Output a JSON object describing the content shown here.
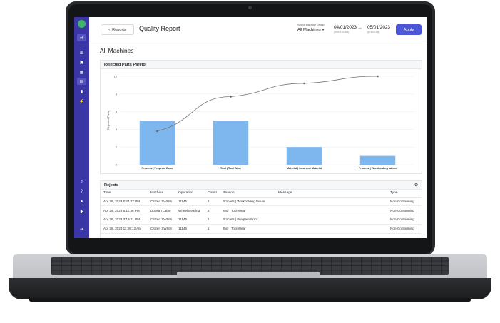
{
  "topbar": {
    "back_label": "Reports",
    "title": "Quality Report",
    "machine_group_label": "Select Machine Group",
    "machine_group_value": "All Machines",
    "date_from": "04/01/2023",
    "date_from_sub": "(from 6:00 AM)",
    "date_to": "05/01/2023",
    "date_to_sub": "(to 6:00 AM)",
    "apply_label": "Apply"
  },
  "main": {
    "title": "All Machines"
  },
  "sidebar": {
    "items": [
      "shuffle-icon",
      "factory-icon",
      "report-icon",
      "calendar-icon",
      "document-icon",
      "bar-chart-icon",
      "lightning-icon",
      "search-icon",
      "help-icon",
      "lock-icon",
      "gear-icon",
      "logout-icon"
    ]
  },
  "chart_card": {
    "title": "Rejected Parts Pareto"
  },
  "chart_data": {
    "type": "bar",
    "categories": [
      "Process | Program Error",
      "Tool | Tool Wear",
      "Material | Incorrect Material",
      "Process | Workholding failure"
    ],
    "values": [
      5,
      5,
      2,
      1
    ],
    "cumulative": [
      3.8,
      7.7,
      9.2,
      10
    ],
    "ylabel": "Rejected Parts",
    "ylim": [
      0,
      10
    ],
    "yticks": [
      0,
      2,
      4,
      6,
      8,
      10
    ],
    "bar_color": "#7eb6ee",
    "line_color": "#777777"
  },
  "rejects": {
    "title": "Rejects",
    "columns": [
      "Time",
      "Machine",
      "Operation",
      "Count",
      "Reason",
      "Message",
      "Type"
    ],
    "rows": [
      [
        "Apr 28, 2023 6:24:47 PM",
        "Citizen SWISS",
        "11145",
        "1",
        "Process | Workholding failure",
        "",
        "Non-Conforming"
      ],
      [
        "Apr 28, 2023 6:11:36 PM",
        "Doosan Lathe",
        "Wheel Bearing",
        "2",
        "Tool | Tool Wear",
        "",
        "Non-Conforming"
      ],
      [
        "Apr 28, 2023 3:19:21 PM",
        "Citizen SWISS",
        "11145",
        "1",
        "Process | Program Error",
        "",
        "Non-Conforming"
      ],
      [
        "Apr 28, 2023 11:26:12 AM",
        "Citizen SWISS",
        "11145",
        "1",
        "Tool | Tool Wear",
        "",
        "Non-Conforming"
      ]
    ]
  },
  "colors": {
    "sidebar": "#3b36a6",
    "accent": "#4b57d8"
  }
}
